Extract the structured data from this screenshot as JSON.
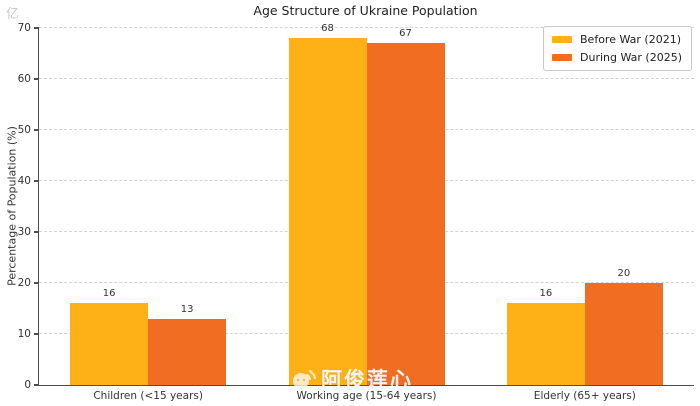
{
  "frame": {
    "corner_mark": "亿"
  },
  "chart": {
    "title": "Age Structure of Ukraine Population",
    "ylabel": "Percentage of Population (%)"
  },
  "chart_data": {
    "type": "bar",
    "title": "Age Structure of Ukraine Population",
    "categories": [
      "Children (<15 years)",
      "Working age (15-64 years)",
      "Elderly (65+ years)"
    ],
    "series": [
      {
        "name": "Before War (2021)",
        "color": "#FDB116",
        "values": [
          16,
          68,
          16
        ]
      },
      {
        "name": "During War (2025)",
        "color": "#F06D22",
        "values": [
          13,
          67,
          20
        ]
      }
    ],
    "ylabel": "Percentage of Population (%)",
    "xlabel": "",
    "ylim": [
      0,
      70
    ],
    "yticks": [
      0,
      10,
      20,
      30,
      40,
      50,
      60,
      70
    ],
    "grid": "horizontal-dashed",
    "legend_position": "upper-right",
    "bar_value_labels": true
  },
  "watermark": {
    "text": "阿俊莲心",
    "icon": "broadcast-logo"
  }
}
